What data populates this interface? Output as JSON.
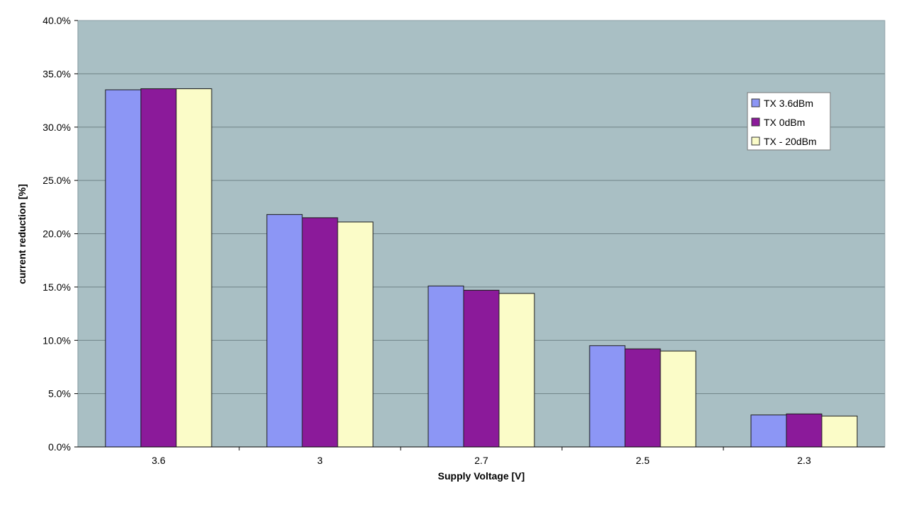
{
  "chart_data": {
    "type": "bar",
    "title": "",
    "xlabel": "Supply Voltage [V]",
    "ylabel": "current reduction [%]",
    "categories": [
      "3.6",
      "3",
      "2.7",
      "2.5",
      "2.3"
    ],
    "series": [
      {
        "name": "TX 3.6dBm",
        "color": "#8c96f5",
        "values": [
          33.5,
          21.8,
          15.1,
          9.5,
          3.0
        ]
      },
      {
        "name": "TX 0dBm",
        "color": "#8b1a9a",
        "values": [
          33.6,
          21.5,
          14.7,
          9.2,
          3.1
        ]
      },
      {
        "name": "TX - 20dBm",
        "color": "#fbfcc8",
        "values": [
          33.6,
          21.1,
          14.4,
          9.0,
          2.9
        ]
      }
    ],
    "ylim": [
      0,
      40
    ],
    "yticks": [
      "0.0%",
      "5.0%",
      "10.0%",
      "15.0%",
      "20.0%",
      "25.0%",
      "30.0%",
      "35.0%",
      "40.0%"
    ],
    "grid": true,
    "legend_position": "top-right",
    "plot_background": "#a9bfc4"
  }
}
